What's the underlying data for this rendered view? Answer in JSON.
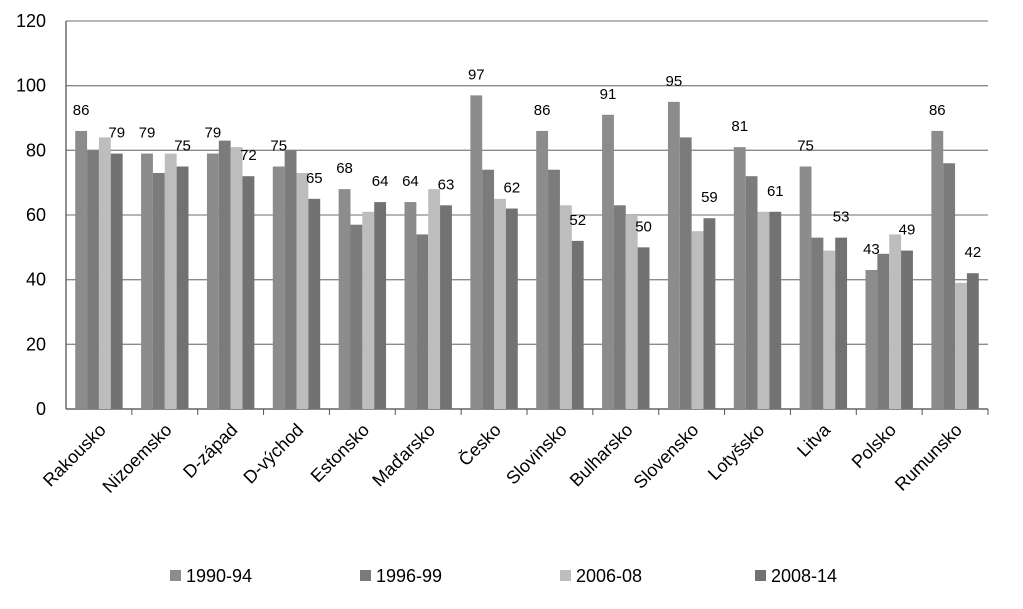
{
  "chart_data": {
    "type": "bar",
    "categories": [
      "Rakousko",
      "Nizoemsko",
      "D-západ",
      "D-východ",
      "Estonsko",
      "Maďarsko",
      "Česko",
      "Slovinsko",
      "Bulharsko",
      "Slovensko",
      "Lotyšsko",
      "Litva",
      "Polsko",
      "Rumunsko"
    ],
    "series": [
      {
        "name": "1990-94",
        "color": "#8c8c8c",
        "data_labels": true,
        "values": [
          86,
          79,
          79,
          75,
          68,
          64,
          97,
          86,
          91,
          95,
          81,
          75,
          43,
          86
        ]
      },
      {
        "name": "1996-99",
        "color": "#7b7b7b",
        "data_labels": false,
        "values": [
          80,
          73,
          83,
          80,
          57,
          54,
          74,
          74,
          63,
          84,
          72,
          53,
          48,
          76
        ]
      },
      {
        "name": "2006-08",
        "color": "#bdbdbd",
        "data_labels": false,
        "values": [
          84,
          79,
          81,
          73,
          61,
          68,
          65,
          63,
          60,
          55,
          61,
          49,
          54,
          39
        ]
      },
      {
        "name": "2008-14",
        "color": "#727272",
        "data_labels": true,
        "values": [
          79,
          75,
          72,
          65,
          64,
          63,
          62,
          52,
          50,
          59,
          61,
          53,
          49,
          42
        ]
      }
    ],
    "ylim": [
      0,
      120
    ],
    "yticks": [
      0,
      20,
      40,
      60,
      80,
      100,
      120
    ],
    "grid": true,
    "legend": "bottom"
  }
}
